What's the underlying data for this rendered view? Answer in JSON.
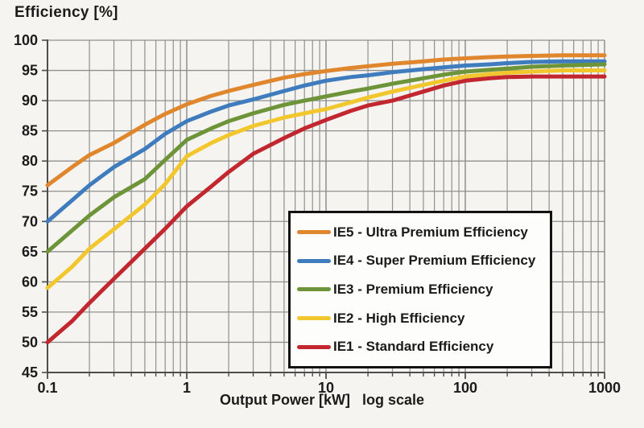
{
  "chart_data": {
    "type": "line",
    "title": "Efficiency [%]",
    "xlabel": "Output Power [kW]   log scale",
    "x_scale": "log",
    "xlim": [
      0.1,
      1000
    ],
    "ylim": [
      45,
      100
    ],
    "grid": true,
    "legend_position": "inside bottom-right (boxed)",
    "y_ticks": [
      100,
      95,
      90,
      85,
      80,
      75,
      70,
      65,
      60,
      55,
      50,
      45
    ],
    "x_ticks": [
      {
        "value": 0.1,
        "label": "0.1"
      },
      {
        "value": 1,
        "label": "1"
      },
      {
        "value": 10,
        "label": "10"
      },
      {
        "value": 100,
        "label": "100"
      },
      {
        "value": 1000,
        "label": "1000"
      }
    ],
    "x": [
      0.1,
      0.15,
      0.2,
      0.3,
      0.5,
      0.7,
      1,
      1.5,
      2,
      3,
      5,
      7,
      10,
      15,
      20,
      30,
      50,
      70,
      100,
      150,
      200,
      300,
      500,
      700,
      1000
    ],
    "series": [
      {
        "id": "ie5",
        "name": "IE5 - Ultra Premium Efficiency",
        "color": "#E0862D",
        "values": [
          76,
          79,
          81,
          83,
          86,
          87.8,
          89.4,
          90.8,
          91.6,
          92.6,
          93.8,
          94.4,
          94.9,
          95.4,
          95.7,
          96.1,
          96.5,
          96.8,
          97.0,
          97.2,
          97.3,
          97.4,
          97.5,
          97.5,
          97.5
        ]
      },
      {
        "id": "ie4",
        "name": "IE4 - Super Premium Efficiency",
        "color": "#3E7CBE",
        "values": [
          70,
          73.5,
          76,
          79,
          82,
          84.5,
          86.6,
          88.2,
          89.2,
          90.2,
          91.6,
          92.5,
          93.3,
          93.9,
          94.2,
          94.7,
          95.2,
          95.5,
          95.8,
          96.0,
          96.2,
          96.4,
          96.5,
          96.5,
          96.5
        ]
      },
      {
        "id": "ie3",
        "name": "IE3 - Premium Efficiency",
        "color": "#6E9439",
        "values": [
          65,
          68.5,
          71,
          74,
          77,
          80.2,
          83.5,
          85.4,
          86.6,
          87.9,
          89.3,
          90.0,
          90.7,
          91.5,
          92.0,
          92.8,
          93.7,
          94.3,
          94.8,
          95.1,
          95.3,
          95.6,
          95.8,
          95.9,
          96.0
        ]
      },
      {
        "id": "ie2",
        "name": "IE2 - High Efficiency",
        "color": "#F2C72E",
        "values": [
          59,
          62.5,
          65.5,
          68.7,
          72.8,
          76.2,
          80.8,
          83.0,
          84.3,
          85.8,
          87.2,
          87.9,
          88.6,
          89.7,
          90.5,
          91.5,
          92.6,
          93.3,
          94.0,
          94.4,
          94.6,
          94.8,
          95.0,
          95.0,
          95.0
        ]
      },
      {
        "id": "ie1",
        "name": "IE1 - Standard Efficiency",
        "color": "#C2262E",
        "values": [
          50,
          53.5,
          56.5,
          60.5,
          65.5,
          68.8,
          72.5,
          75.8,
          78.2,
          81.2,
          83.8,
          85.4,
          86.8,
          88.3,
          89.2,
          90.0,
          91.5,
          92.5,
          93.3,
          93.7,
          93.9,
          94.0,
          94.0,
          94.0,
          94.0
        ]
      }
    ]
  },
  "legend": {
    "items": [
      {
        "id": "ie5",
        "label": "IE5 - Ultra Premium Efficiency",
        "color": "#E0862D"
      },
      {
        "id": "ie4",
        "label": "IE4 - Super Premium Efficiency",
        "color": "#3E7CBE"
      },
      {
        "id": "ie3",
        "label": "IE3 - Premium Efficiency",
        "color": "#6E9439"
      },
      {
        "id": "ie2",
        "label": "IE2 - High Efficiency",
        "color": "#F2C72E"
      },
      {
        "id": "ie1",
        "label": "IE1 - Standard Efficiency",
        "color": "#C2262E"
      }
    ]
  },
  "colors": {
    "background": "#f6f4f1",
    "grid": "#8f8f8f",
    "axis": "#4d4d4d",
    "text": "#1b1b1b",
    "legend_border": "#121212",
    "legend_background": "#fdfdfb"
  }
}
